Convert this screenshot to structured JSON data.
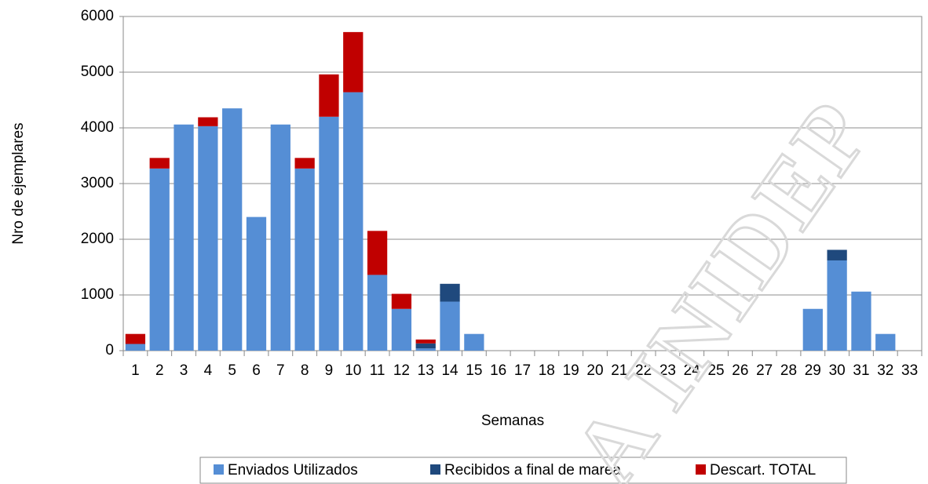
{
  "chart_data": {
    "type": "stacked_bar",
    "x_label": "Semanas",
    "y_label": "Nro de ejemplares",
    "watermark": "A INIDEP",
    "categories": [
      "1",
      "2",
      "3",
      "4",
      "5",
      "6",
      "7",
      "8",
      "9",
      "10",
      "11",
      "12",
      "13",
      "14",
      "15",
      "16",
      "17",
      "18",
      "19",
      "20",
      "21",
      "22",
      "23",
      "24",
      "25",
      "26",
      "27",
      "28",
      "29",
      "30",
      "31",
      "32",
      "33"
    ],
    "series": [
      {
        "name": "Enviados Utilizados",
        "color": "#558ed5",
        "values": [
          120,
          3270,
          4060,
          4030,
          4350,
          2400,
          4060,
          3270,
          4200,
          4640,
          1360,
          750,
          40,
          880,
          300,
          0,
          0,
          0,
          0,
          0,
          0,
          0,
          0,
          0,
          0,
          0,
          0,
          0,
          750,
          1620,
          1060,
          300,
          0
        ]
      },
      {
        "name": "Recibidos a final de marea",
        "color": "#1f497d",
        "values": [
          0,
          0,
          0,
          0,
          0,
          0,
          0,
          0,
          0,
          0,
          0,
          0,
          90,
          320,
          0,
          0,
          0,
          0,
          0,
          0,
          0,
          0,
          0,
          0,
          0,
          0,
          0,
          0,
          0,
          190,
          0,
          0,
          0
        ]
      },
      {
        "name": "Descart. TOTAL",
        "color": "#c00000",
        "values": [
          180,
          190,
          0,
          160,
          0,
          0,
          0,
          190,
          760,
          1080,
          790,
          270,
          70,
          0,
          0,
          0,
          0,
          0,
          0,
          0,
          0,
          0,
          0,
          0,
          0,
          0,
          0,
          0,
          0,
          0,
          0,
          0,
          0
        ]
      }
    ],
    "ylim": [
      0,
      6000
    ],
    "yticks": [
      0,
      1000,
      2000,
      3000,
      4000,
      5000,
      6000
    ],
    "grid": true,
    "legend": "bottom"
  }
}
